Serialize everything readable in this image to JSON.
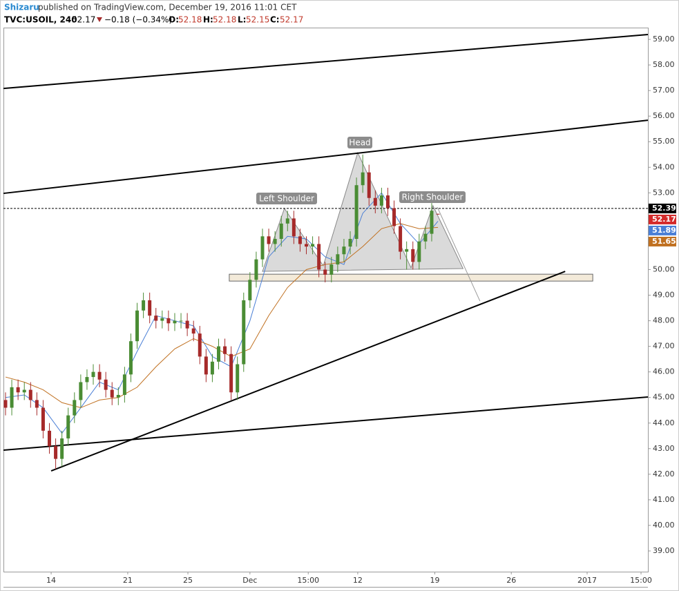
{
  "header": {
    "author": "Shizaru",
    "published": "published on TradingView.com, December 19, 2016 11:01 CET",
    "symbol": "TVC:USOIL, 240",
    "last": "52.17",
    "change": "−0.18 (−0.34%)",
    "ohlc": [
      {
        "label": "O:",
        "value": "52.18"
      },
      {
        "label": "H:",
        "value": "52.18"
      },
      {
        "label": "L:",
        "value": "52.15"
      },
      {
        "label": "C:",
        "value": "52.17"
      }
    ]
  },
  "chart_data": {
    "type": "candlestick",
    "up_color": "#4a8c34",
    "down_color": "#a62a2a",
    "xlim": [
      -0.33,
      102.5
    ],
    "ylim": [
      38.19,
      59.46
    ],
    "xticks": [
      {
        "value": 7.28,
        "label": "14"
      },
      {
        "value": 19.5,
        "label": "21"
      },
      {
        "value": 29.1,
        "label": "25"
      },
      {
        "value": 39.0,
        "label": "Dec"
      },
      {
        "value": 48.3,
        "label": "15:00"
      },
      {
        "value": 56.2,
        "label": "12"
      },
      {
        "value": 68.5,
        "label": "19"
      },
      {
        "value": 80.7,
        "label": "26"
      },
      {
        "value": 92.8,
        "label": "2017"
      },
      {
        "value": 101.4,
        "label": "15:00"
      }
    ],
    "yticks": [
      {
        "value": 39,
        "label": "39.00"
      },
      {
        "value": 40,
        "label": "40.00"
      },
      {
        "value": 41,
        "label": "41.00"
      },
      {
        "value": 42,
        "label": "42.00"
      },
      {
        "value": 43,
        "label": "43.00"
      },
      {
        "value": 44,
        "label": "44.00"
      },
      {
        "value": 45,
        "label": "45.00"
      },
      {
        "value": 46,
        "label": "46.00"
      },
      {
        "value": 47,
        "label": "47.00"
      },
      {
        "value": 48,
        "label": "48.00"
      },
      {
        "value": 49,
        "label": "49.00"
      },
      {
        "value": 50,
        "label": "50.00"
      },
      {
        "value": 51,
        "label": "51.00"
      },
      {
        "value": 52,
        "label": "52.00"
      },
      {
        "value": 53,
        "label": "53.00"
      },
      {
        "value": 54,
        "label": "54.00"
      },
      {
        "value": 55,
        "label": "55.00"
      },
      {
        "value": 56,
        "label": "56.00"
      },
      {
        "value": 57,
        "label": "57.00"
      },
      {
        "value": 58,
        "label": "58.00"
      },
      {
        "value": 59,
        "label": "59.00"
      }
    ],
    "open": [
      44.9,
      44.6,
      45.4,
      45.2,
      45.3,
      44.9,
      44.6,
      43.7,
      43.1,
      42.6,
      43.4,
      44.3,
      44.9,
      45.6,
      45.8,
      46.0,
      45.7,
      45.3,
      45.0,
      45.1,
      45.9,
      47.2,
      48.4,
      48.8,
      48.2,
      48.0,
      48.1,
      47.9,
      48.0,
      48.0,
      47.7,
      47.5,
      46.6,
      45.9,
      46.4,
      47.0,
      46.7,
      45.2,
      46.3,
      48.8,
      49.6,
      50.4,
      51.3,
      51.0,
      51.2,
      51.8,
      52.0,
      51.3,
      51.0,
      50.9,
      51.0,
      50.0,
      49.8,
      50.2,
      50.6,
      50.9,
      51.2,
      53.3,
      53.8,
      52.8,
      52.5,
      52.9,
      52.4,
      51.7,
      50.7,
      50.8,
      50.3,
      51.1,
      51.4,
      52.18
    ],
    "high": [
      45.2,
      45.7,
      45.7,
      45.6,
      45.6,
      45.2,
      44.9,
      44.0,
      43.4,
      43.7,
      44.6,
      45.2,
      45.9,
      46.1,
      46.3,
      46.3,
      46.0,
      45.6,
      45.4,
      46.2,
      47.5,
      48.7,
      49.1,
      49.1,
      48.5,
      48.4,
      48.4,
      48.3,
      48.3,
      48.3,
      48.0,
      47.8,
      46.9,
      46.7,
      47.3,
      47.3,
      47.0,
      46.6,
      49.1,
      49.9,
      50.7,
      51.6,
      51.6,
      51.5,
      52.1,
      52.3,
      52.3,
      51.6,
      51.3,
      51.3,
      51.3,
      50.3,
      50.5,
      50.9,
      51.2,
      51.5,
      53.6,
      54.5,
      54.1,
      53.1,
      53.2,
      53.2,
      52.7,
      52.0,
      51.1,
      51.1,
      51.4,
      51.7,
      52.6,
      52.18
    ],
    "low": [
      44.3,
      44.3,
      44.9,
      44.9,
      44.6,
      44.3,
      43.4,
      42.8,
      42.2,
      42.3,
      43.1,
      44.0,
      44.6,
      45.3,
      45.5,
      45.4,
      45.0,
      44.7,
      44.7,
      44.8,
      45.6,
      46.9,
      48.1,
      47.9,
      47.7,
      47.7,
      47.6,
      47.6,
      47.7,
      47.4,
      47.2,
      46.3,
      45.6,
      45.6,
      46.1,
      46.4,
      44.9,
      44.9,
      46.0,
      48.5,
      49.3,
      50.1,
      50.7,
      50.7,
      50.9,
      51.5,
      51.0,
      50.7,
      50.6,
      50.6,
      49.7,
      49.5,
      49.5,
      49.9,
      50.3,
      50.6,
      50.9,
      53.0,
      52.5,
      52.2,
      52.2,
      52.1,
      51.4,
      50.4,
      50.0,
      50.0,
      50.0,
      50.8,
      51.1,
      52.15
    ],
    "close": [
      44.6,
      45.4,
      45.2,
      45.3,
      44.9,
      44.6,
      43.7,
      43.1,
      42.6,
      43.4,
      44.3,
      44.9,
      45.6,
      45.8,
      46.0,
      45.7,
      45.3,
      45.0,
      45.1,
      45.9,
      47.2,
      48.4,
      48.8,
      48.2,
      48.0,
      48.1,
      47.9,
      48.0,
      48.0,
      47.7,
      47.5,
      46.6,
      45.9,
      46.4,
      47.0,
      46.7,
      45.2,
      46.3,
      48.8,
      49.6,
      50.4,
      51.3,
      51.0,
      51.2,
      51.8,
      52.0,
      51.3,
      51.0,
      50.9,
      51.0,
      50.0,
      49.8,
      50.2,
      50.6,
      50.9,
      51.2,
      53.3,
      53.8,
      52.8,
      52.5,
      52.9,
      52.4,
      51.7,
      50.7,
      50.8,
      50.3,
      51.1,
      51.4,
      52.3,
      52.17
    ],
    "overlays": [
      {
        "color": "#4a7fd6",
        "x": [
          0,
          3,
          6,
          9,
          12,
          15,
          18,
          21,
          24,
          27,
          30,
          33,
          36,
          39,
          42,
          45,
          48,
          51,
          54,
          57,
          60,
          63,
          66,
          69
        ],
        "values": [
          45.0,
          45.1,
          44.6,
          43.6,
          44.6,
          45.6,
          45.3,
          46.8,
          48.2,
          48.0,
          47.8,
          46.6,
          46.2,
          48.0,
          50.5,
          51.3,
          51.2,
          50.5,
          50.2,
          52.2,
          53.0,
          51.8,
          51.0,
          51.89
        ]
      },
      {
        "color": "#c07020",
        "x": [
          0,
          3,
          6,
          9,
          12,
          15,
          18,
          21,
          24,
          27,
          30,
          33,
          36,
          39,
          42,
          45,
          48,
          51,
          54,
          57,
          60,
          63,
          66,
          69
        ],
        "values": [
          45.8,
          45.6,
          45.3,
          44.8,
          44.6,
          44.9,
          45.0,
          45.4,
          46.2,
          46.9,
          47.3,
          47.0,
          46.6,
          46.9,
          48.2,
          49.3,
          50.0,
          50.2,
          50.3,
          50.9,
          51.6,
          51.8,
          51.6,
          51.65
        ]
      }
    ],
    "trendlines": [
      {
        "color": "#000000",
        "x": [
          -0.33,
          102.5
        ],
        "y": [
          57.08,
          59.19
        ]
      },
      {
        "color": "#000000",
        "x": [
          -0.33,
          102.5
        ],
        "y": [
          52.98,
          55.84
        ]
      },
      {
        "color": "#000000",
        "x": [
          -0.33,
          102.5
        ],
        "y": [
          42.94,
          45.02
        ]
      },
      {
        "color": "#000000",
        "x": [
          7.28,
          89.3
        ],
        "y": [
          42.13,
          49.93
        ]
      },
      {
        "color": "#9a9a9a",
        "x": [
          68.9,
          75.7
        ],
        "y": [
          52.44,
          48.77
        ]
      }
    ],
    "zone": {
      "x": [
        35.7,
        93.7
      ],
      "y": [
        49.82,
        49.55
      ]
    },
    "pattern": {
      "x": [
        41.0,
        44.5,
        50.7,
        56.2,
        64.7,
        68.2,
        73.0
      ],
      "y": [
        49.93,
        52.39,
        50.15,
        54.57,
        50.07,
        52.5,
        50.04
      ]
    },
    "price_line": 52.39,
    "price_labels": [
      {
        "value": 52.39,
        "label": "52.39",
        "color": "#000000"
      },
      {
        "value": 52.17,
        "label": "52.17",
        "color": "#d42a2a"
      },
      {
        "value": 51.89,
        "label": "51.89",
        "color": "#4a7fd6"
      },
      {
        "value": 51.65,
        "label": "51.65",
        "color": "#c07020"
      }
    ],
    "annotations": [
      "Left Shoulder",
      "Head",
      "Right Shoulder"
    ]
  }
}
